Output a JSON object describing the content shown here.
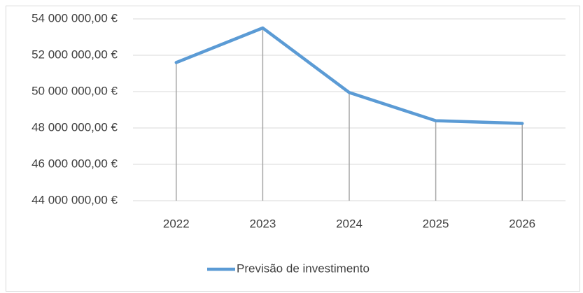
{
  "chart_data": {
    "type": "line",
    "categories": [
      "2022",
      "2023",
      "2024",
      "2025",
      "2026"
    ],
    "series": [
      {
        "name": "Previsão de investimento",
        "color": "#5b9bd5",
        "values": [
          51600000,
          53500000,
          49950000,
          48400000,
          48250000
        ]
      }
    ],
    "ylim": [
      44000000,
      54000000
    ],
    "yticks": [
      {
        "value": 44000000,
        "label": "44 000 000,00 €"
      },
      {
        "value": 46000000,
        "label": "46 000 000,00 €"
      },
      {
        "value": 48000000,
        "label": "48 000 000,00 €"
      },
      {
        "value": 50000000,
        "label": "50 000 000,00 €"
      },
      {
        "value": 52000000,
        "label": "52 000 000,00 €"
      },
      {
        "value": 54000000,
        "label": "54 000 000,00 €"
      }
    ],
    "grid": true,
    "drop_lines": true,
    "legend": "bottom"
  }
}
